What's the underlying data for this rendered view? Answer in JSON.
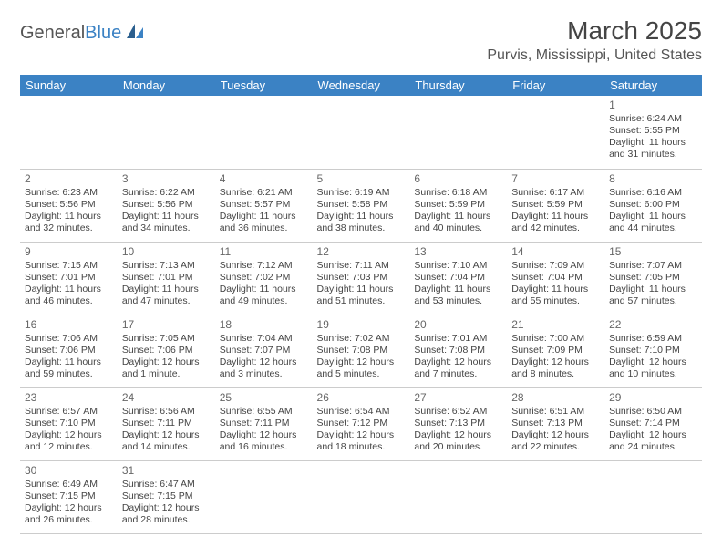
{
  "logo": {
    "text1": "General",
    "text2": "Blue"
  },
  "title": "March 2025",
  "location": "Purvis, Mississippi, United States",
  "day_headers": [
    "Sunday",
    "Monday",
    "Tuesday",
    "Wednesday",
    "Thursday",
    "Friday",
    "Saturday"
  ],
  "colors": {
    "header_bg": "#3b82c4",
    "header_text": "#ffffff",
    "row_divider": "#3b82c4",
    "text": "#444444"
  },
  "weeks": [
    [
      null,
      null,
      null,
      null,
      null,
      null,
      {
        "n": "1",
        "sr": "Sunrise: 6:24 AM",
        "ss": "Sunset: 5:55 PM",
        "d1": "Daylight: 11 hours",
        "d2": "and 31 minutes."
      }
    ],
    [
      {
        "n": "2",
        "sr": "Sunrise: 6:23 AM",
        "ss": "Sunset: 5:56 PM",
        "d1": "Daylight: 11 hours",
        "d2": "and 32 minutes."
      },
      {
        "n": "3",
        "sr": "Sunrise: 6:22 AM",
        "ss": "Sunset: 5:56 PM",
        "d1": "Daylight: 11 hours",
        "d2": "and 34 minutes."
      },
      {
        "n": "4",
        "sr": "Sunrise: 6:21 AM",
        "ss": "Sunset: 5:57 PM",
        "d1": "Daylight: 11 hours",
        "d2": "and 36 minutes."
      },
      {
        "n": "5",
        "sr": "Sunrise: 6:19 AM",
        "ss": "Sunset: 5:58 PM",
        "d1": "Daylight: 11 hours",
        "d2": "and 38 minutes."
      },
      {
        "n": "6",
        "sr": "Sunrise: 6:18 AM",
        "ss": "Sunset: 5:59 PM",
        "d1": "Daylight: 11 hours",
        "d2": "and 40 minutes."
      },
      {
        "n": "7",
        "sr": "Sunrise: 6:17 AM",
        "ss": "Sunset: 5:59 PM",
        "d1": "Daylight: 11 hours",
        "d2": "and 42 minutes."
      },
      {
        "n": "8",
        "sr": "Sunrise: 6:16 AM",
        "ss": "Sunset: 6:00 PM",
        "d1": "Daylight: 11 hours",
        "d2": "and 44 minutes."
      }
    ],
    [
      {
        "n": "9",
        "sr": "Sunrise: 7:15 AM",
        "ss": "Sunset: 7:01 PM",
        "d1": "Daylight: 11 hours",
        "d2": "and 46 minutes."
      },
      {
        "n": "10",
        "sr": "Sunrise: 7:13 AM",
        "ss": "Sunset: 7:01 PM",
        "d1": "Daylight: 11 hours",
        "d2": "and 47 minutes."
      },
      {
        "n": "11",
        "sr": "Sunrise: 7:12 AM",
        "ss": "Sunset: 7:02 PM",
        "d1": "Daylight: 11 hours",
        "d2": "and 49 minutes."
      },
      {
        "n": "12",
        "sr": "Sunrise: 7:11 AM",
        "ss": "Sunset: 7:03 PM",
        "d1": "Daylight: 11 hours",
        "d2": "and 51 minutes."
      },
      {
        "n": "13",
        "sr": "Sunrise: 7:10 AM",
        "ss": "Sunset: 7:04 PM",
        "d1": "Daylight: 11 hours",
        "d2": "and 53 minutes."
      },
      {
        "n": "14",
        "sr": "Sunrise: 7:09 AM",
        "ss": "Sunset: 7:04 PM",
        "d1": "Daylight: 11 hours",
        "d2": "and 55 minutes."
      },
      {
        "n": "15",
        "sr": "Sunrise: 7:07 AM",
        "ss": "Sunset: 7:05 PM",
        "d1": "Daylight: 11 hours",
        "d2": "and 57 minutes."
      }
    ],
    [
      {
        "n": "16",
        "sr": "Sunrise: 7:06 AM",
        "ss": "Sunset: 7:06 PM",
        "d1": "Daylight: 11 hours",
        "d2": "and 59 minutes."
      },
      {
        "n": "17",
        "sr": "Sunrise: 7:05 AM",
        "ss": "Sunset: 7:06 PM",
        "d1": "Daylight: 12 hours",
        "d2": "and 1 minute."
      },
      {
        "n": "18",
        "sr": "Sunrise: 7:04 AM",
        "ss": "Sunset: 7:07 PM",
        "d1": "Daylight: 12 hours",
        "d2": "and 3 minutes."
      },
      {
        "n": "19",
        "sr": "Sunrise: 7:02 AM",
        "ss": "Sunset: 7:08 PM",
        "d1": "Daylight: 12 hours",
        "d2": "and 5 minutes."
      },
      {
        "n": "20",
        "sr": "Sunrise: 7:01 AM",
        "ss": "Sunset: 7:08 PM",
        "d1": "Daylight: 12 hours",
        "d2": "and 7 minutes."
      },
      {
        "n": "21",
        "sr": "Sunrise: 7:00 AM",
        "ss": "Sunset: 7:09 PM",
        "d1": "Daylight: 12 hours",
        "d2": "and 8 minutes."
      },
      {
        "n": "22",
        "sr": "Sunrise: 6:59 AM",
        "ss": "Sunset: 7:10 PM",
        "d1": "Daylight: 12 hours",
        "d2": "and 10 minutes."
      }
    ],
    [
      {
        "n": "23",
        "sr": "Sunrise: 6:57 AM",
        "ss": "Sunset: 7:10 PM",
        "d1": "Daylight: 12 hours",
        "d2": "and 12 minutes."
      },
      {
        "n": "24",
        "sr": "Sunrise: 6:56 AM",
        "ss": "Sunset: 7:11 PM",
        "d1": "Daylight: 12 hours",
        "d2": "and 14 minutes."
      },
      {
        "n": "25",
        "sr": "Sunrise: 6:55 AM",
        "ss": "Sunset: 7:11 PM",
        "d1": "Daylight: 12 hours",
        "d2": "and 16 minutes."
      },
      {
        "n": "26",
        "sr": "Sunrise: 6:54 AM",
        "ss": "Sunset: 7:12 PM",
        "d1": "Daylight: 12 hours",
        "d2": "and 18 minutes."
      },
      {
        "n": "27",
        "sr": "Sunrise: 6:52 AM",
        "ss": "Sunset: 7:13 PM",
        "d1": "Daylight: 12 hours",
        "d2": "and 20 minutes."
      },
      {
        "n": "28",
        "sr": "Sunrise: 6:51 AM",
        "ss": "Sunset: 7:13 PM",
        "d1": "Daylight: 12 hours",
        "d2": "and 22 minutes."
      },
      {
        "n": "29",
        "sr": "Sunrise: 6:50 AM",
        "ss": "Sunset: 7:14 PM",
        "d1": "Daylight: 12 hours",
        "d2": "and 24 minutes."
      }
    ],
    [
      {
        "n": "30",
        "sr": "Sunrise: 6:49 AM",
        "ss": "Sunset: 7:15 PM",
        "d1": "Daylight: 12 hours",
        "d2": "and 26 minutes."
      },
      {
        "n": "31",
        "sr": "Sunrise: 6:47 AM",
        "ss": "Sunset: 7:15 PM",
        "d1": "Daylight: 12 hours",
        "d2": "and 28 minutes."
      },
      null,
      null,
      null,
      null,
      null
    ]
  ]
}
